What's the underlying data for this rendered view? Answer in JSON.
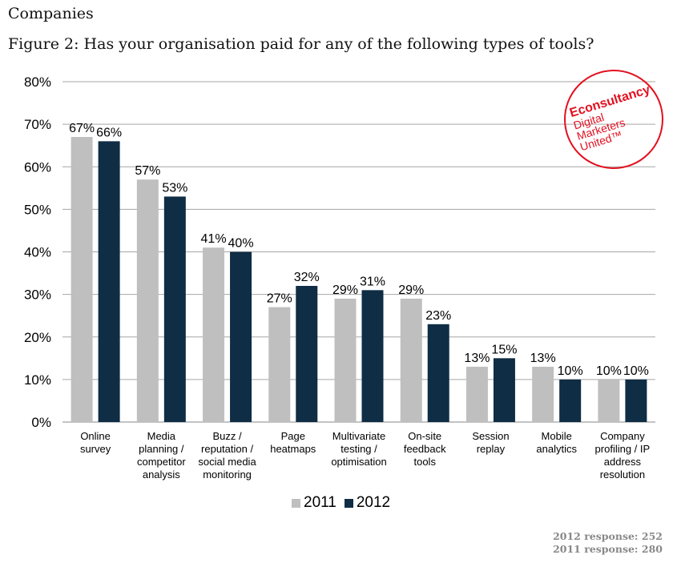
{
  "page": {
    "section": "Companies",
    "title": "Figure 2: Has your organisation paid for any of the following types of tools?"
  },
  "logo": {
    "brand": "Econsultancy",
    "lines": [
      "Digital",
      "Marketers",
      "United™"
    ]
  },
  "footer": {
    "line1": "2012 response: 252",
    "line2": "2011 response: 280"
  },
  "colors": {
    "s2011": "#bfbfbf",
    "s2012": "#0f2d45",
    "logo": "#e3101f"
  },
  "chart_data": {
    "type": "bar",
    "categories": [
      [
        "Online",
        "survey"
      ],
      [
        "Media",
        "planning /",
        "competitor",
        "analysis"
      ],
      [
        "Buzz /",
        "reputation /",
        "social media",
        "monitoring"
      ],
      [
        "Page",
        "heatmaps"
      ],
      [
        "Multivariate",
        "testing /",
        "optimisation"
      ],
      [
        "On-site",
        "feedback",
        "tools"
      ],
      [
        "Session",
        "replay"
      ],
      [
        "Mobile",
        "analytics"
      ],
      [
        "Company",
        "profiling / IP",
        "address",
        "resolution"
      ]
    ],
    "series": [
      {
        "name": "2011",
        "values": [
          67,
          57,
          41,
          27,
          29,
          29,
          13,
          13,
          10
        ],
        "labels": [
          "67%",
          "57%",
          "41%",
          "27%",
          "29%",
          "29%",
          "13%",
          "13%",
          "10%"
        ]
      },
      {
        "name": "2012",
        "values": [
          66,
          53,
          40,
          32,
          31,
          23,
          15,
          10,
          10
        ],
        "labels": [
          "66%",
          "53%",
          "40%",
          "32%",
          "31%",
          "23%",
          "15%",
          "10%",
          "10%"
        ]
      }
    ],
    "yticks": [
      "0%",
      "10%",
      "20%",
      "30%",
      "40%",
      "50%",
      "60%",
      "70%",
      "80%"
    ],
    "ylim": [
      0,
      80
    ],
    "grid": true,
    "legend": "bottom"
  }
}
